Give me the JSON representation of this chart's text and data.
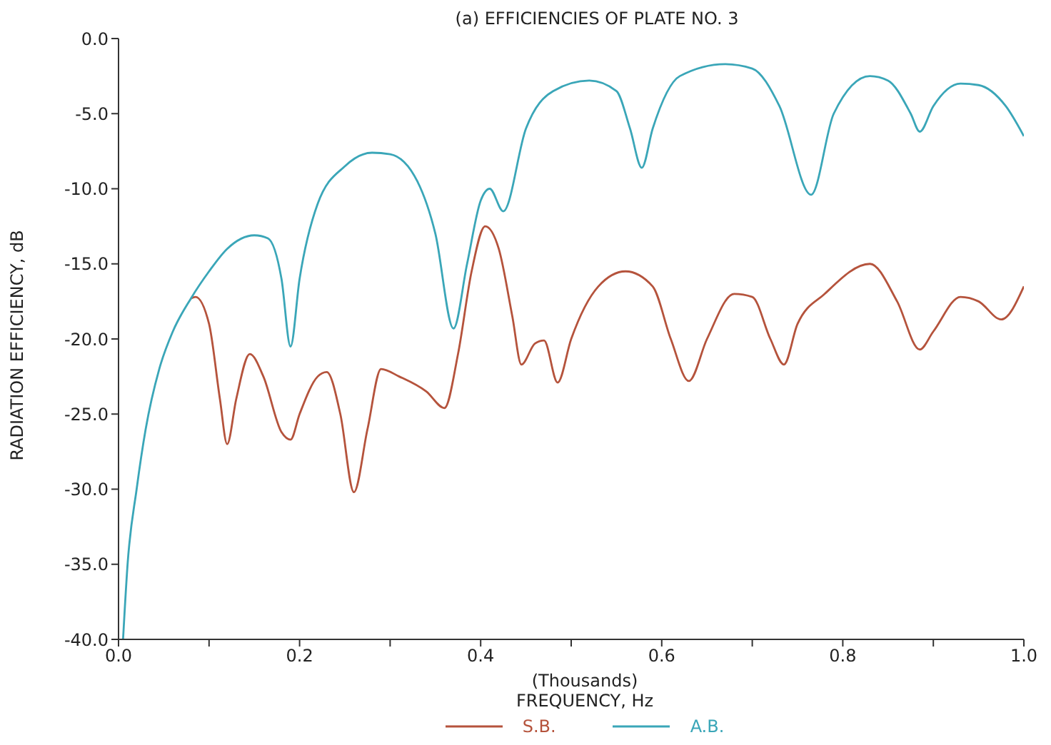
{
  "chart_data": {
    "type": "line",
    "title": "(a) EFFICIENCIES OF PLATE NO. 3",
    "xlabel": "(Thousands)\nFREQUENCY, Hz",
    "ylabel": "RADIATION EFFICIENCY, dB",
    "xlim": [
      0,
      1
    ],
    "ylim": [
      -40,
      0
    ],
    "xticks": [
      {
        "value": 0,
        "label": "0.0"
      },
      {
        "value": 0.1,
        "label": null
      },
      {
        "value": 0.2,
        "label": "0.2"
      },
      {
        "value": 0.3,
        "label": null
      },
      {
        "value": 0.4,
        "label": "0.4"
      },
      {
        "value": 0.5,
        "label": null
      },
      {
        "value": 0.6,
        "label": "0.6"
      },
      {
        "value": 0.7,
        "label": null
      },
      {
        "value": 0.8,
        "label": "0.8"
      },
      {
        "value": 0.9,
        "label": null
      },
      {
        "value": 1,
        "label": "1.0"
      }
    ],
    "yticks": [
      {
        "value": -40,
        "label": "-40.0"
      },
      {
        "value": -35,
        "label": "-35.0"
      },
      {
        "value": -30,
        "label": "-30.0"
      },
      {
        "value": -25,
        "label": "-25.0"
      },
      {
        "value": -20,
        "label": "-20.0"
      },
      {
        "value": -15,
        "label": "-15.0"
      },
      {
        "value": -10,
        "label": "-10.0"
      },
      {
        "value": -5,
        "label": "-5.0"
      },
      {
        "value": 0,
        "label": "0.0"
      }
    ],
    "grid": false,
    "legend": "bottom",
    "marker": "none",
    "line_style": "solid",
    "series": [
      {
        "name": "S.B.",
        "color": "#b5533c",
        "x": [
          0.08,
          0.085,
          0.1,
          0.112,
          0.12,
          0.13,
          0.145,
          0.16,
          0.18,
          0.19,
          0.2,
          0.22,
          0.23,
          0.245,
          0.26,
          0.275,
          0.29,
          0.31,
          0.34,
          0.36,
          0.375,
          0.39,
          0.405,
          0.42,
          0.435,
          0.445,
          0.46,
          0.47,
          0.485,
          0.5,
          0.53,
          0.56,
          0.59,
          0.61,
          0.63,
          0.65,
          0.68,
          0.7,
          0.72,
          0.735,
          0.75,
          0.78,
          0.83,
          0.86,
          0.885,
          0.9,
          0.93,
          0.95,
          0.975,
          1.0
        ],
        "values": [
          -17.3,
          -17.2,
          -19,
          -24,
          -27,
          -24,
          -21,
          -22.5,
          -26.2,
          -26.7,
          -25,
          -22.5,
          -22.2,
          -25,
          -30.2,
          -26,
          -22,
          -22.5,
          -23.5,
          -24.6,
          -21,
          -15.5,
          -12.5,
          -14,
          -18.5,
          -21.7,
          -20.3,
          -20.1,
          -22.9,
          -20,
          -16.5,
          -15.5,
          -16.5,
          -20,
          -22.8,
          -20,
          -17,
          -17.2,
          -20,
          -21.7,
          -19,
          -17,
          -15,
          -17.5,
          -20.7,
          -19.5,
          -17.2,
          -17.5,
          -18.7,
          -16.5
        ]
      },
      {
        "name": "A.B.",
        "color": "#3aa6b8",
        "x": [
          0.005,
          0.01,
          0.02,
          0.03,
          0.045,
          0.06,
          0.08,
          0.1,
          0.12,
          0.15,
          0.165,
          0.18,
          0.19,
          0.2,
          0.22,
          0.25,
          0.28,
          0.3,
          0.33,
          0.35,
          0.37,
          0.385,
          0.4,
          0.41,
          0.425,
          0.45,
          0.48,
          0.52,
          0.55,
          0.565,
          0.578,
          0.59,
          0.62,
          0.67,
          0.7,
          0.73,
          0.765,
          0.79,
          0.83,
          0.85,
          0.875,
          0.885,
          0.9,
          0.93,
          0.95,
          0.98,
          1.0
        ],
        "values": [
          -40,
          -35,
          -30,
          -26,
          -22,
          -19.5,
          -17.3,
          -15.5,
          -14,
          -13.1,
          -13.3,
          -16,
          -20.5,
          -16,
          -11,
          -8.5,
          -7.6,
          -7.7,
          -9.5,
          -13,
          -19.3,
          -15,
          -10.8,
          -10,
          -11.5,
          -6,
          -3.5,
          -2.8,
          -3.5,
          -6,
          -8.6,
          -6,
          -2.5,
          -1.7,
          -2,
          -4.5,
          -10.4,
          -5,
          -2.5,
          -2.8,
          -5,
          -6.2,
          -4.5,
          -3,
          -3.1,
          -4.5,
          -6.5
        ]
      }
    ]
  }
}
